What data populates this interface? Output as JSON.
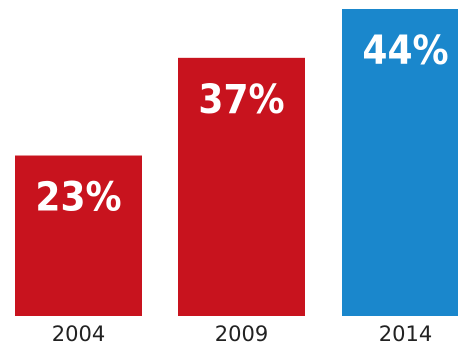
{
  "chart_data": {
    "type": "bar",
    "title": "",
    "xlabel": "",
    "ylabel": "",
    "categories": [
      "2004",
      "2009",
      "2014"
    ],
    "values": [
      23,
      37,
      44
    ],
    "value_labels": [
      "23%",
      "37%",
      "44%"
    ],
    "colors": [
      "#c8131e",
      "#c8131e",
      "#1a87cc"
    ],
    "ylim": [
      0,
      44
    ],
    "grid": false,
    "legend": "none"
  }
}
